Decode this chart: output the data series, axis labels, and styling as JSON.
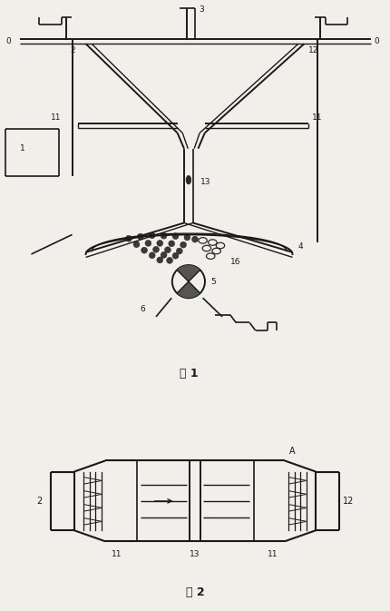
{
  "fig_width": 4.3,
  "fig_height": 6.73,
  "dpi": 100,
  "bg_color": "#f0efea",
  "line_color": "#1a1a1a",
  "label_color": "#1a1a1a",
  "fig1_title": "图 1",
  "fig2_title": "图 2"
}
